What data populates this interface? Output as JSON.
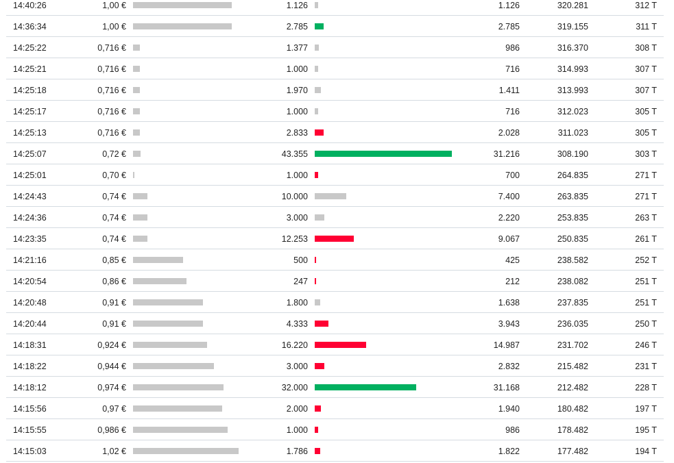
{
  "colors": {
    "buy": "#00b060",
    "sell": "#ff0033",
    "neutral": "#c8c8c8",
    "bar": "#c8c8c8"
  },
  "trades": [
    {
      "time": "14:40:26",
      "price": "1,00 €",
      "price_value": 1.0,
      "volume": "1.126",
      "volume_value": 1126,
      "side": "neutral",
      "amount": "1.126",
      "cumulative": "320.281",
      "count": "312 T"
    },
    {
      "time": "14:36:34",
      "price": "1,00 €",
      "price_value": 1.0,
      "volume": "2.785",
      "volume_value": 2785,
      "side": "buy",
      "amount": "2.785",
      "cumulative": "319.155",
      "count": "311 T"
    },
    {
      "time": "14:25:22",
      "price": "0,716 €",
      "price_value": 0.716,
      "volume": "1.377",
      "volume_value": 1377,
      "side": "neutral",
      "amount": "986",
      "cumulative": "316.370",
      "count": "308 T"
    },
    {
      "time": "14:25:21",
      "price": "0,716 €",
      "price_value": 0.716,
      "volume": "1.000",
      "volume_value": 1000,
      "side": "neutral",
      "amount": "716",
      "cumulative": "314.993",
      "count": "307 T"
    },
    {
      "time": "14:25:18",
      "price": "0,716 €",
      "price_value": 0.716,
      "volume": "1.970",
      "volume_value": 1970,
      "side": "neutral",
      "amount": "1.411",
      "cumulative": "313.993",
      "count": "307 T"
    },
    {
      "time": "14:25:17",
      "price": "0,716 €",
      "price_value": 0.716,
      "volume": "1.000",
      "volume_value": 1000,
      "side": "neutral",
      "amount": "716",
      "cumulative": "312.023",
      "count": "305 T"
    },
    {
      "time": "14:25:13",
      "price": "0,716 €",
      "price_value": 0.716,
      "volume": "2.833",
      "volume_value": 2833,
      "side": "sell",
      "amount": "2.028",
      "cumulative": "311.023",
      "count": "305 T"
    },
    {
      "time": "14:25:07",
      "price": "0,72 €",
      "price_value": 0.72,
      "volume": "43.355",
      "volume_value": 43355,
      "side": "buy",
      "amount": "31.216",
      "cumulative": "308.190",
      "count": "303 T"
    },
    {
      "time": "14:25:01",
      "price": "0,70 €",
      "price_value": 0.7,
      "volume": "1.000",
      "volume_value": 1000,
      "side": "sell",
      "amount": "700",
      "cumulative": "264.835",
      "count": "271 T"
    },
    {
      "time": "14:24:43",
      "price": "0,74 €",
      "price_value": 0.74,
      "volume": "10.000",
      "volume_value": 10000,
      "side": "neutral",
      "amount": "7.400",
      "cumulative": "263.835",
      "count": "271 T"
    },
    {
      "time": "14:24:36",
      "price": "0,74 €",
      "price_value": 0.74,
      "volume": "3.000",
      "volume_value": 3000,
      "side": "neutral",
      "amount": "2.220",
      "cumulative": "253.835",
      "count": "263 T"
    },
    {
      "time": "14:23:35",
      "price": "0,74 €",
      "price_value": 0.74,
      "volume": "12.253",
      "volume_value": 12253,
      "side": "sell",
      "amount": "9.067",
      "cumulative": "250.835",
      "count": "261 T"
    },
    {
      "time": "14:21:16",
      "price": "0,85 €",
      "price_value": 0.85,
      "volume": "500",
      "volume_value": 500,
      "side": "sell",
      "amount": "425",
      "cumulative": "238.582",
      "count": "252 T"
    },
    {
      "time": "14:20:54",
      "price": "0,86 €",
      "price_value": 0.86,
      "volume": "247",
      "volume_value": 247,
      "side": "sell",
      "amount": "212",
      "cumulative": "238.082",
      "count": "251 T"
    },
    {
      "time": "14:20:48",
      "price": "0,91 €",
      "price_value": 0.91,
      "volume": "1.800",
      "volume_value": 1800,
      "side": "neutral",
      "amount": "1.638",
      "cumulative": "237.835",
      "count": "251 T"
    },
    {
      "time": "14:20:44",
      "price": "0,91 €",
      "price_value": 0.91,
      "volume": "4.333",
      "volume_value": 4333,
      "side": "sell",
      "amount": "3.943",
      "cumulative": "236.035",
      "count": "250 T"
    },
    {
      "time": "14:18:31",
      "price": "0,924 €",
      "price_value": 0.924,
      "volume": "16.220",
      "volume_value": 16220,
      "side": "sell",
      "amount": "14.987",
      "cumulative": "231.702",
      "count": "246 T"
    },
    {
      "time": "14:18:22",
      "price": "0,944 €",
      "price_value": 0.944,
      "volume": "3.000",
      "volume_value": 3000,
      "side": "sell",
      "amount": "2.832",
      "cumulative": "215.482",
      "count": "231 T"
    },
    {
      "time": "14:18:12",
      "price": "0,974 €",
      "price_value": 0.974,
      "volume": "32.000",
      "volume_value": 32000,
      "side": "buy",
      "amount": "31.168",
      "cumulative": "212.482",
      "count": "228 T"
    },
    {
      "time": "14:15:56",
      "price": "0,97 €",
      "price_value": 0.97,
      "volume": "2.000",
      "volume_value": 2000,
      "side": "sell",
      "amount": "1.940",
      "cumulative": "180.482",
      "count": "197 T"
    },
    {
      "time": "14:15:55",
      "price": "0,986 €",
      "price_value": 0.986,
      "volume": "1.000",
      "volume_value": 1000,
      "side": "sell",
      "amount": "986",
      "cumulative": "178.482",
      "count": "195 T"
    },
    {
      "time": "14:15:03",
      "price": "1,02 €",
      "price_value": 1.02,
      "volume": "1.786",
      "volume_value": 1786,
      "side": "sell",
      "amount": "1.822",
      "cumulative": "177.482",
      "count": "194 T"
    }
  ]
}
